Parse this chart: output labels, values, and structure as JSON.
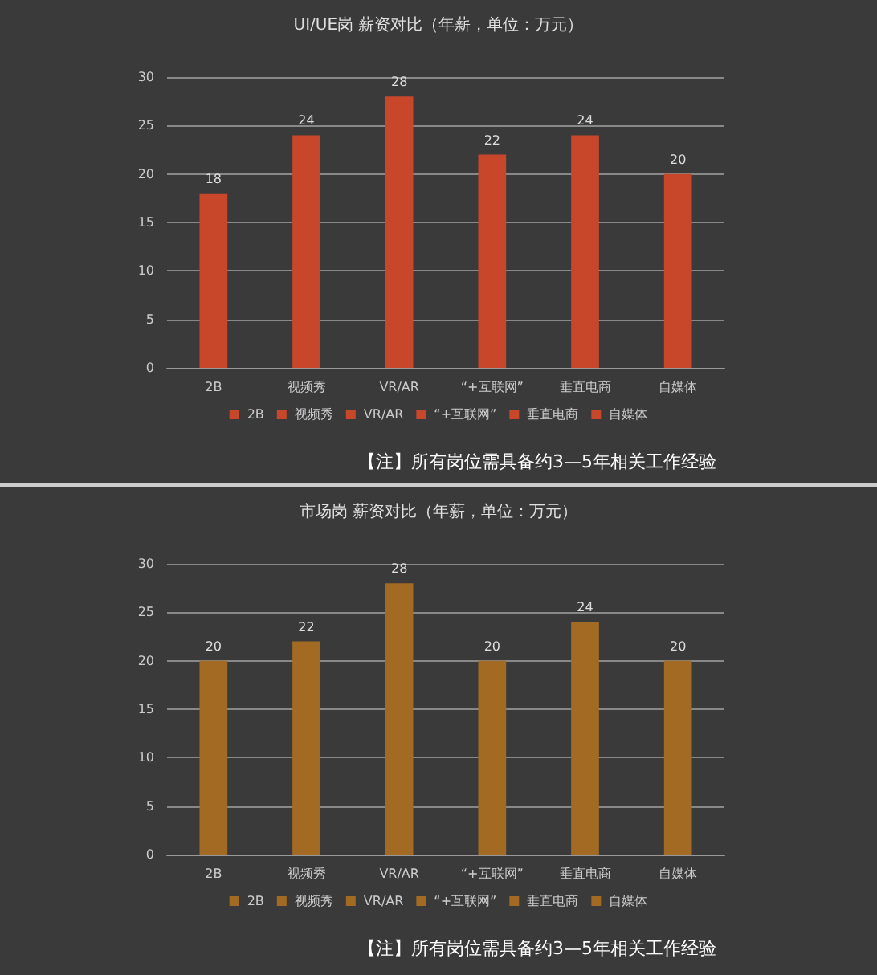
{
  "chart_data": [
    {
      "type": "bar",
      "title": "UI/UE岗 薪资对比（年薪，单位：万元）",
      "categories": [
        "2B",
        "视频秀",
        "VR/AR",
        "“+互联网”",
        "垂直电商",
        "自媒体"
      ],
      "series": [
        {
          "name": "2B",
          "color": "#c8472b",
          "values": [
            18,
            null,
            null,
            null,
            null,
            null
          ]
        },
        {
          "name": "视频秀",
          "color": "#c8472b",
          "values": [
            null,
            24,
            null,
            null,
            null,
            null
          ]
        },
        {
          "name": "VR/AR",
          "color": "#c8472b",
          "values": [
            null,
            null,
            28,
            null,
            null,
            null
          ]
        },
        {
          "name": "“+互联网”",
          "color": "#c8472b",
          "values": [
            null,
            null,
            null,
            22,
            null,
            null
          ]
        },
        {
          "name": "垂直电商",
          "color": "#c8472b",
          "values": [
            null,
            null,
            null,
            null,
            24,
            null
          ]
        },
        {
          "name": "自媒体",
          "color": "#c8472b",
          "values": [
            null,
            null,
            null,
            null,
            null,
            20
          ]
        }
      ],
      "ylim": [
        0,
        30
      ],
      "yticks": [
        0,
        5,
        10,
        15,
        20,
        25,
        30
      ],
      "grid": "y",
      "legend": "bottom",
      "data_labels": true,
      "annotations": [
        "【注】所有岗位需具备约3—5年相关工作经验"
      ]
    },
    {
      "type": "bar",
      "title": "市场岗 薪资对比（年薪，单位：万元）",
      "categories": [
        "2B",
        "视频秀",
        "VR/AR",
        "“+互联网”",
        "垂直电商",
        "自媒体"
      ],
      "series": [
        {
          "name": "2B",
          "color": "#a36a24",
          "values": [
            20,
            null,
            null,
            null,
            null,
            null
          ]
        },
        {
          "name": "视频秀",
          "color": "#a36a24",
          "values": [
            null,
            22,
            null,
            null,
            null,
            null
          ]
        },
        {
          "name": "VR/AR",
          "color": "#a36a24",
          "values": [
            null,
            null,
            28,
            null,
            null,
            null
          ]
        },
        {
          "name": "“+互联网”",
          "color": "#a36a24",
          "values": [
            null,
            null,
            null,
            20,
            null,
            null
          ]
        },
        {
          "name": "垂直电商",
          "color": "#a36a24",
          "values": [
            null,
            null,
            null,
            null,
            24,
            null
          ]
        },
        {
          "name": "自媒体",
          "color": "#a36a24",
          "values": [
            null,
            null,
            null,
            null,
            null,
            20
          ]
        }
      ],
      "ylim": [
        0,
        30
      ],
      "yticks": [
        0,
        5,
        10,
        15,
        20,
        25,
        30
      ],
      "grid": "y",
      "legend": "bottom",
      "data_labels": true,
      "annotations": [
        "【注】所有岗位需具备约3—5年相关工作经验"
      ]
    }
  ]
}
